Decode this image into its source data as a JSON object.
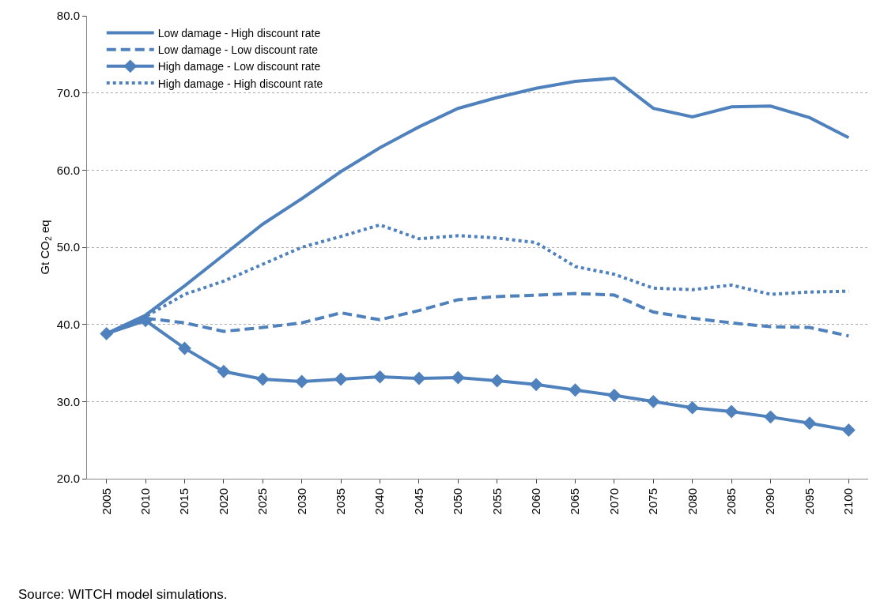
{
  "chart_data": {
    "type": "line",
    "ylabel": "Gt CO$_{2}$ eq",
    "categories": [
      "2005",
      "2010",
      "2015",
      "2020",
      "2025",
      "2030",
      "2035",
      "2040",
      "2045",
      "2050",
      "2055",
      "2060",
      "2065",
      "2070",
      "2075",
      "2080",
      "2085",
      "2090",
      "2095",
      "2100"
    ],
    "ylim": [
      20,
      80
    ],
    "yticks": [
      {
        "value": 20,
        "label": "20.0"
      },
      {
        "value": 30,
        "label": "30.0"
      },
      {
        "value": 40,
        "label": "40.0"
      },
      {
        "value": 50,
        "label": "50.0"
      },
      {
        "value": 60,
        "label": "60.0"
      },
      {
        "value": 70,
        "label": "70.0"
      },
      {
        "value": 80,
        "label": "80.0"
      }
    ],
    "grid": "y",
    "legend": "top left",
    "series": [
      {
        "name": "Low damage - High discount rate",
        "color": "#4f81bd",
        "line_style": "solid",
        "marker": "none",
        "values": [
          38.8,
          41.2,
          45.0,
          49.0,
          53.0,
          56.3,
          59.8,
          62.9,
          65.6,
          68.0,
          69.4,
          70.6,
          71.5,
          71.9,
          68.0,
          66.9,
          68.2,
          68.3,
          66.8,
          64.2
        ]
      },
      {
        "name": "Low damage - Low discount rate",
        "color": "#4f81bd",
        "line_style": "dashed",
        "marker": "none",
        "values": [
          38.8,
          40.8,
          40.2,
          39.1,
          39.6,
          40.2,
          41.5,
          40.6,
          41.8,
          43.2,
          43.6,
          43.8,
          44.0,
          43.8,
          41.6,
          40.8,
          40.2,
          39.7,
          39.6,
          38.5
        ]
      },
      {
        "name": "High damage - Low discount rate",
        "color": "#4f81bd",
        "line_style": "solid",
        "marker": "diamond",
        "values": [
          38.8,
          40.5,
          36.9,
          33.9,
          32.9,
          32.6,
          32.9,
          33.2,
          33.0,
          33.1,
          32.7,
          32.2,
          31.5,
          30.8,
          30.0,
          29.2,
          28.7,
          28.0,
          27.2,
          26.3
        ]
      },
      {
        "name": "High damage - High discount rate",
        "color": "#4f81bd",
        "line_style": "dotted",
        "marker": "none",
        "values": [
          38.8,
          41.0,
          43.9,
          45.6,
          47.8,
          50.0,
          51.4,
          52.9,
          51.1,
          51.5,
          51.2,
          50.6,
          47.5,
          46.5,
          44.7,
          44.5,
          45.1,
          43.9,
          44.2,
          44.3
        ]
      }
    ],
    "annotations": [
      "Source: WITCH model simulations."
    ]
  }
}
